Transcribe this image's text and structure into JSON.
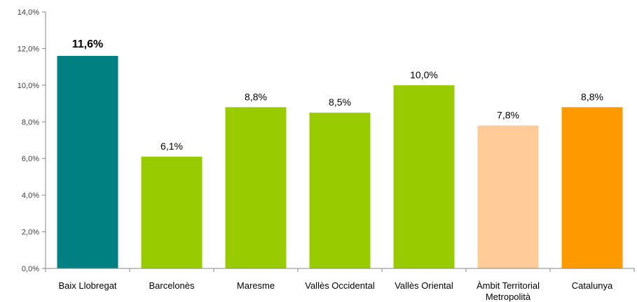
{
  "chart_data": {
    "type": "bar",
    "title": "",
    "xlabel": "",
    "ylabel": "",
    "ylim": [
      0,
      14
    ],
    "yticks": [
      0,
      2,
      4,
      6,
      8,
      10,
      12,
      14
    ],
    "ytick_labels": [
      "0,0%",
      "2,0%",
      "4,0%",
      "6,0%",
      "8,0%",
      "10,0%",
      "12,0%",
      "14,0%"
    ],
    "categories": [
      "Baix Llobregat",
      "Barcelonès",
      "Maresme",
      "Vallès Occidental",
      "Vallès Oriental",
      "Àmbit Territorial Metropolità",
      "Catalunya"
    ],
    "category_lines": [
      [
        "Baix Llobregat"
      ],
      [
        "Barcelonès"
      ],
      [
        "Maresme"
      ],
      [
        "Vallès Occidental"
      ],
      [
        "Vallès Oriental"
      ],
      [
        "Àmbit Territorial",
        "Metropolità"
      ],
      [
        "Catalunya"
      ]
    ],
    "values": [
      11.6,
      6.1,
      8.8,
      8.5,
      10.0,
      7.8,
      8.8
    ],
    "value_labels": [
      "11,6%",
      "6,1%",
      "8,8%",
      "8,5%",
      "10,0%",
      "7,8%",
      "8,8%"
    ],
    "bar_colors": [
      "#008080",
      "#99cc00",
      "#99cc00",
      "#99cc00",
      "#99cc00",
      "#ffcc99",
      "#ff9900"
    ],
    "highlight_label_color": "#009999",
    "highlight_index": 0,
    "grid": false,
    "legend": "none"
  }
}
